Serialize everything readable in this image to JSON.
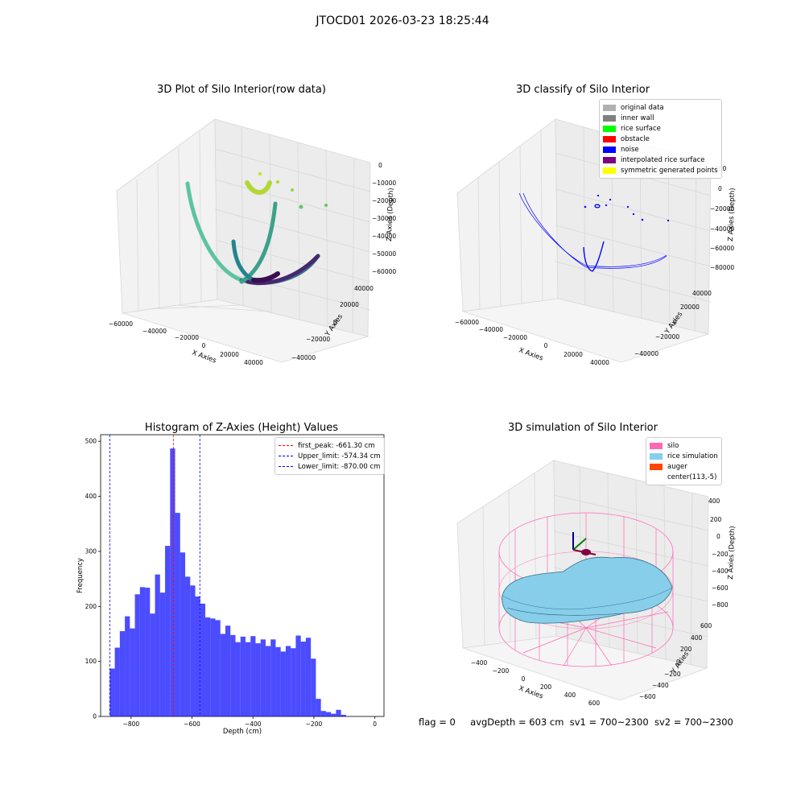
{
  "figure": {
    "suptitle": "JTOCD01 2026-03-23 18:25:44",
    "footer": {
      "flag": "flag = 0",
      "avg_depth": "avgDepth = 603 cm",
      "sv1": "sv1 = 700~2300",
      "sv2": "sv2 = 700~2300"
    }
  },
  "panels": {
    "raw3d": {
      "title": "3D Plot of Silo Interior(row data)",
      "xlabel": "X Axies",
      "ylabel": "Y Axies",
      "zlabel": "Z Axies (Depth)",
      "xticks": [
        "−60000",
        "−40000",
        "−20000",
        "0",
        "20000",
        "40000"
      ],
      "yticks": [
        "−40000",
        "−20000",
        "0",
        "20000",
        "40000"
      ],
      "zticks": [
        "0",
        "−10000",
        "−20000",
        "−30000",
        "−40000",
        "−50000",
        "−60000"
      ]
    },
    "classify3d": {
      "title": "3D classify of Silo Interior",
      "xlabel": "X Axies",
      "ylabel": "Y Axies",
      "zlabel": "Z Axies (Depth)",
      "xticks": [
        "−60000",
        "−40000",
        "−20000",
        "0",
        "20000",
        "40000"
      ],
      "yticks": [
        "−40000",
        "−20000",
        "0",
        "20000",
        "40000"
      ],
      "zticks": [
        "0",
        "−20000",
        "−40000",
        "−60000",
        "−80000"
      ],
      "ztick_partial": "000",
      "legend": [
        {
          "label": "original data",
          "color": "#b0b0b0"
        },
        {
          "label": "inner wall",
          "color": "#808080"
        },
        {
          "label": "rice surface",
          "color": "#00ff00"
        },
        {
          "label": "obstacle",
          "color": "#ff0000"
        },
        {
          "label": "noise",
          "color": "#0000ff"
        },
        {
          "label": "interpolated rice surface",
          "color": "#800080"
        },
        {
          "label": "symmetric generated points",
          "color": "#ffff00"
        }
      ]
    },
    "simulation3d": {
      "title": "3D simulation of Silo Interior",
      "xlabel": "X Axies",
      "ylabel": "Y Axies",
      "zlabel": "Z Axies (Depth)",
      "xticks": [
        "−400",
        "−200",
        "0",
        "200",
        "400",
        "600"
      ],
      "yticks": [
        "−600",
        "−400",
        "−200",
        "0",
        "200",
        "400",
        "600"
      ],
      "zticks": [
        "400",
        "200",
        "0",
        "−200",
        "−400",
        "−600",
        "−800"
      ],
      "legend": [
        {
          "label": "silo",
          "color": "#ff69b4"
        },
        {
          "label": "rice simulation",
          "color": "#87ceeb"
        },
        {
          "label": "auger",
          "color": "#ff4500"
        },
        {
          "label": "center(113,-5)",
          "color": "#ffffff"
        }
      ],
      "colors": {
        "silo": "#ff69b4",
        "rice": "#87ceeb",
        "auger": "#800040"
      }
    }
  },
  "chart_data": [
    {
      "type": "bar",
      "title": "Histogram of Z-Axies (Height) Values",
      "xlabel": "Depth (cm)",
      "ylabel": "Frequency",
      "xlim": [
        -900,
        30
      ],
      "ylim": [
        0,
        512
      ],
      "xticks": [
        -800,
        -600,
        -400,
        -200,
        0
      ],
      "yticks": [
        0,
        100,
        200,
        300,
        400,
        500
      ],
      "bar_color": "#0000ff",
      "bin_start": -870,
      "bin_width": 16.5,
      "values": [
        87,
        125,
        155,
        182,
        160,
        222,
        235,
        234,
        187,
        258,
        225,
        310,
        487,
        370,
        298,
        254,
        238,
        218,
        205,
        180,
        178,
        175,
        150,
        165,
        148,
        135,
        145,
        135,
        146,
        133,
        140,
        128,
        140,
        126,
        118,
        128,
        124,
        147,
        136,
        143,
        105,
        32,
        10,
        8,
        5,
        12,
        3
      ],
      "vlines": [
        {
          "label": "first_peak: -661.30 cm",
          "x": -661.3,
          "color": "#ff0000"
        },
        {
          "label": "Upper_limit: -574.34 cm",
          "x": -574.34,
          "color": "#0000ff"
        },
        {
          "label": "Lower_limit: -870.00 cm",
          "x": -870.0,
          "color": "#0000ff"
        }
      ]
    }
  ]
}
